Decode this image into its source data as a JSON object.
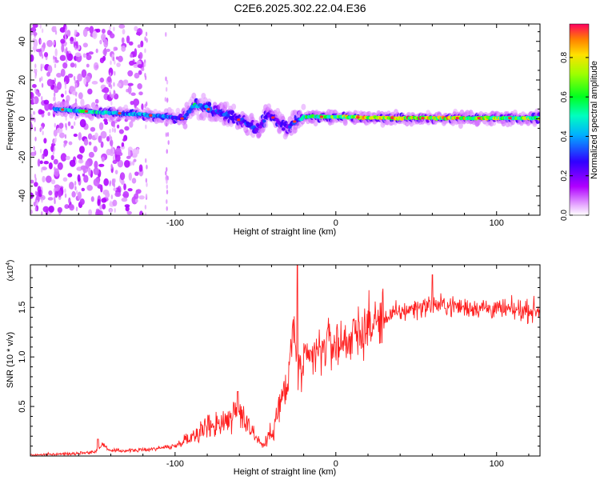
{
  "title": "C2E6.2025.302.22.04.E36",
  "colors": {
    "snr_line": "#ff2020",
    "axis": "#000000",
    "ridge_core": "#ff3030"
  },
  "chart_data": [
    {
      "type": "heatmap",
      "name": "spectrogram",
      "xlabel": "Height of straight line (km)",
      "ylabel": "Frequency (Hz)",
      "xlim": [
        -190,
        127
      ],
      "ylim": [
        -50,
        49
      ],
      "xticks": [
        -100,
        0,
        100
      ],
      "xtick_labels": [
        "-100",
        "0",
        "100"
      ],
      "yticks": [
        -40,
        -20,
        0,
        20,
        40
      ],
      "ytick_labels": [
        "-40",
        "-20",
        "0",
        "20",
        "40"
      ],
      "colorbar": {
        "label": "Normalized spectral amplitude",
        "range": [
          0,
          0.97
        ],
        "ticks": [
          0.0,
          0.2,
          0.4,
          0.6,
          0.8
        ],
        "tick_labels": [
          "0.0",
          "0.2",
          "0.4",
          "0.6",
          "0.8"
        ],
        "colormap": "rainbow-magenta-to-red"
      },
      "ridge": {
        "description": "main spectral ridge frequency vs height",
        "x": [
          -175,
          -160,
          -140,
          -120,
          -105,
          -95,
          -88,
          -80,
          -70,
          -62,
          -55,
          -48,
          -42,
          -36,
          -30,
          -25,
          -20,
          -10,
          0,
          20,
          40,
          60,
          80,
          100,
          120,
          127
        ],
        "y": [
          5,
          4,
          3,
          2,
          1,
          0,
          7,
          5,
          3,
          0,
          -3,
          -5,
          3,
          -2,
          -5,
          -1,
          1,
          1,
          1,
          0.5,
          0.3,
          0.3,
          0.3,
          0.3,
          0.3,
          0.3
        ],
        "amplitude": [
          0.45,
          0.6,
          0.5,
          0.45,
          0.4,
          0.35,
          0.6,
          0.4,
          0.35,
          0.3,
          0.35,
          0.3,
          0.3,
          0.25,
          0.3,
          0.35,
          0.6,
          0.7,
          0.75,
          0.9,
          0.95,
          0.9,
          0.85,
          0.8,
          0.75,
          0.7
        ]
      }
    },
    {
      "type": "line",
      "name": "snr",
      "xlabel": "Height of straight line (km)",
      "ylabel": "SNR (10 * v/v)",
      "scale_label": "(x10",
      "scale_exp": "4",
      "scale_close": ")",
      "xlim": [
        -190,
        127
      ],
      "ylim": [
        0,
        1.93
      ],
      "xticks": [
        -100,
        0,
        100
      ],
      "xtick_labels": [
        "-100",
        "0",
        "100"
      ],
      "yticks": [
        0.5,
        1.0,
        1.5
      ],
      "ytick_labels": [
        "0.5",
        "1.0",
        "1.5"
      ],
      "envelope": {
        "x": [
          -190,
          -170,
          -150,
          -145,
          -140,
          -120,
          -100,
          -90,
          -80,
          -70,
          -60,
          -55,
          -50,
          -45,
          -40,
          -35,
          -30,
          -26,
          -24,
          -20,
          -15,
          -10,
          -5,
          0,
          10,
          20,
          30,
          40,
          50,
          60,
          70,
          80,
          90,
          100,
          110,
          120,
          127
        ],
        "y": [
          0.01,
          0.02,
          0.04,
          0.12,
          0.05,
          0.06,
          0.1,
          0.2,
          0.3,
          0.35,
          0.45,
          0.35,
          0.2,
          0.1,
          0.25,
          0.5,
          0.7,
          1.35,
          0.8,
          0.9,
          1.0,
          1.05,
          1.15,
          1.12,
          1.2,
          1.3,
          1.4,
          1.45,
          1.5,
          1.52,
          1.52,
          1.5,
          1.5,
          1.48,
          1.47,
          1.47,
          1.47
        ]
      },
      "peaks": [
        {
          "x": -148,
          "y": 0.17
        },
        {
          "x": -61,
          "y": 0.65
        },
        {
          "x": -24,
          "y": 1.93
        },
        {
          "x": 60,
          "y": 1.83
        }
      ]
    }
  ]
}
